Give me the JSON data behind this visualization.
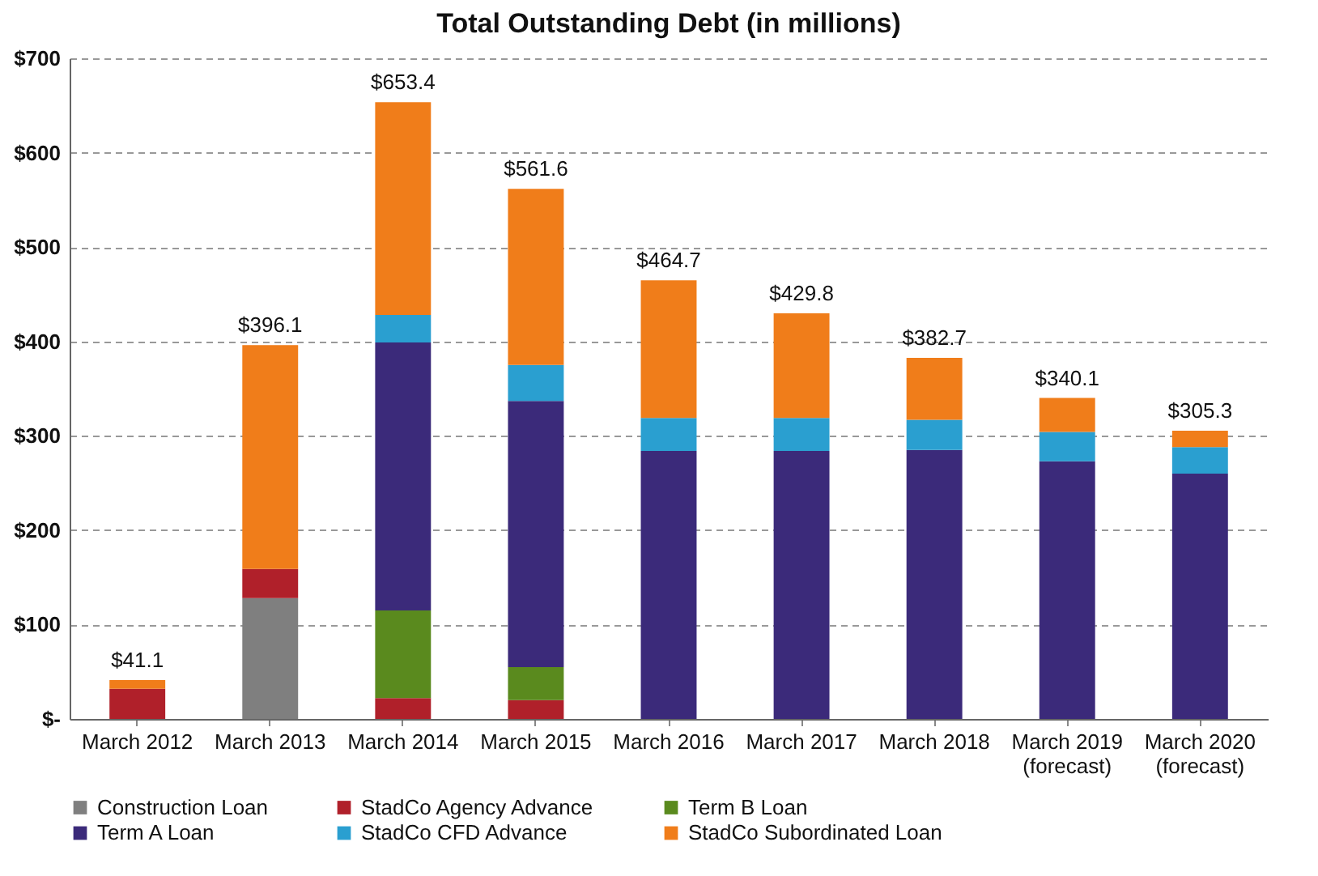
{
  "chart_data": {
    "type": "bar",
    "title": "Total Outstanding Debt (in millions)",
    "stacked": true,
    "categories": [
      "March 2012",
      "March 2013",
      "March 2014",
      "March 2015",
      "March 2016",
      "March 2017",
      "March 2018",
      "March 2019\n(forecast)",
      "March 2020\n(forecast)"
    ],
    "series": [
      {
        "name": "Construction Loan",
        "color": "#7f7f7f",
        "values": [
          null,
          128,
          null,
          null,
          null,
          null,
          null,
          null,
          null
        ]
      },
      {
        "name": "StadCo Agency Advance",
        "color": "#b0202a",
        "values": [
          32,
          31,
          22,
          20,
          null,
          null,
          null,
          null,
          null
        ]
      },
      {
        "name": "Term B Loan",
        "color": "#5a8a1e",
        "values": [
          null,
          null,
          93,
          35,
          null,
          null,
          null,
          null,
          null
        ]
      },
      {
        "name": "Term A Loan",
        "color": "#3b2a7a",
        "values": [
          null,
          null,
          284,
          282,
          284,
          284,
          285,
          273,
          260
        ]
      },
      {
        "name": "StadCo CFD Advance",
        "color": "#2a9fd0",
        "values": [
          null,
          null,
          29,
          38,
          35,
          35,
          32,
          31,
          28
        ]
      },
      {
        "name": "StadCo Subordinated Loan",
        "color": "#f07d1a",
        "values": [
          9.1,
          237.1,
          225.4,
          186.6,
          145.7,
          110.8,
          65.7,
          36.1,
          17.3
        ]
      }
    ],
    "totals": [
      "$41.1",
      "$396.1",
      "$653.4",
      "$561.6",
      "$464.7",
      "$429.8",
      "$382.7",
      "$340.1",
      "$305.3"
    ],
    "ylim": [
      0,
      700
    ],
    "yticks": [
      {
        "value": 0,
        "label": "$-"
      },
      {
        "value": 100,
        "label": "$100"
      },
      {
        "value": 200,
        "label": "$200"
      },
      {
        "value": 300,
        "label": "$300"
      },
      {
        "value": 400,
        "label": "$400"
      },
      {
        "value": 500,
        "label": "$500"
      },
      {
        "value": 600,
        "label": "$600"
      },
      {
        "value": 700,
        "label": "$700"
      }
    ],
    "grid": "y",
    "legend": "bottom"
  }
}
